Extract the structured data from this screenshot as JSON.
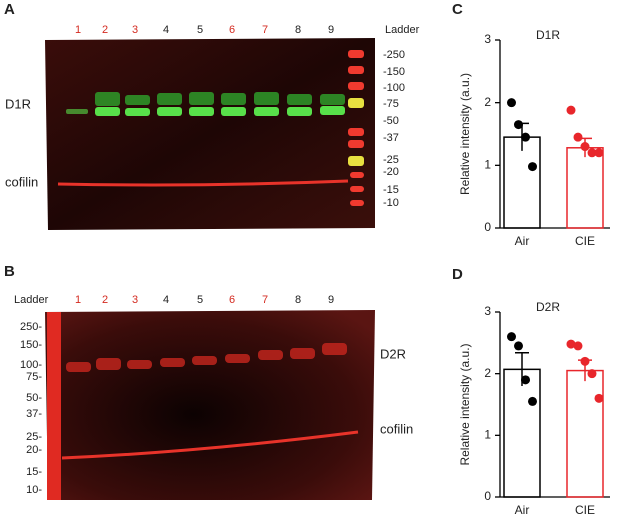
{
  "panels": {
    "a": "A",
    "b": "B",
    "c": "C",
    "d": "D"
  },
  "blot_a": {
    "lanes": [
      {
        "label": "1",
        "color": "#d42a20"
      },
      {
        "label": "2",
        "color": "#d42a20"
      },
      {
        "label": "3",
        "color": "#d42a20"
      },
      {
        "label": "4",
        "color": "#222222"
      },
      {
        "label": "5",
        "color": "#222222"
      },
      {
        "label": "6",
        "color": "#d42a20"
      },
      {
        "label": "7",
        "color": "#d42a20"
      },
      {
        "label": "8",
        "color": "#222222"
      },
      {
        "label": "9",
        "color": "#222222"
      }
    ],
    "ladder_title": "Ladder",
    "ladder": [
      "-250",
      "-150",
      "-100",
      "-75",
      "-50",
      "-37",
      "-25",
      "-20",
      "-15",
      "-10"
    ],
    "target": "D1R",
    "control": "cofilin"
  },
  "blot_b": {
    "lanes": [
      {
        "label": "1",
        "color": "#d42a20"
      },
      {
        "label": "2",
        "color": "#d42a20"
      },
      {
        "label": "3",
        "color": "#d42a20"
      },
      {
        "label": "4",
        "color": "#222222"
      },
      {
        "label": "5",
        "color": "#222222"
      },
      {
        "label": "6",
        "color": "#d42a20"
      },
      {
        "label": "7",
        "color": "#d42a20"
      },
      {
        "label": "8",
        "color": "#222222"
      },
      {
        "label": "9",
        "color": "#222222"
      }
    ],
    "ladder_title": "Ladder",
    "ladder": [
      "250-",
      "150-",
      "100-",
      "75-",
      "50-",
      "37-",
      "25-",
      "20-",
      "15-",
      "10-"
    ],
    "target": "D2R",
    "control": "cofilin"
  },
  "chart_data": [
    {
      "type": "bar",
      "title": "D1R",
      "ylabel": "Relative intensity (a.u.)",
      "categories": [
        "Air",
        "CIE"
      ],
      "values": [
        1.45,
        1.28
      ],
      "errors": [
        0.22,
        0.15
      ],
      "colors": [
        "#000000",
        "#e8262b"
      ],
      "points": [
        [
          2.0,
          1.65,
          1.45,
          0.98
        ],
        [
          1.88,
          1.45,
          1.3,
          1.2,
          1.2
        ]
      ],
      "ylim": [
        0,
        3
      ],
      "yticks": [
        0,
        1,
        2,
        3
      ]
    },
    {
      "type": "bar",
      "title": "D2R",
      "ylabel": "Relative intensity (a.u.)",
      "categories": [
        "Air",
        "CIE"
      ],
      "values": [
        2.07,
        2.05
      ],
      "errors": [
        0.27,
        0.17
      ],
      "colors": [
        "#000000",
        "#e8262b"
      ],
      "points": [
        [
          2.6,
          2.45,
          1.9,
          1.55
        ],
        [
          2.48,
          2.45,
          2.2,
          2.0,
          1.6
        ]
      ],
      "ylim": [
        0,
        3
      ],
      "yticks": [
        0,
        1,
        2,
        3
      ]
    }
  ]
}
